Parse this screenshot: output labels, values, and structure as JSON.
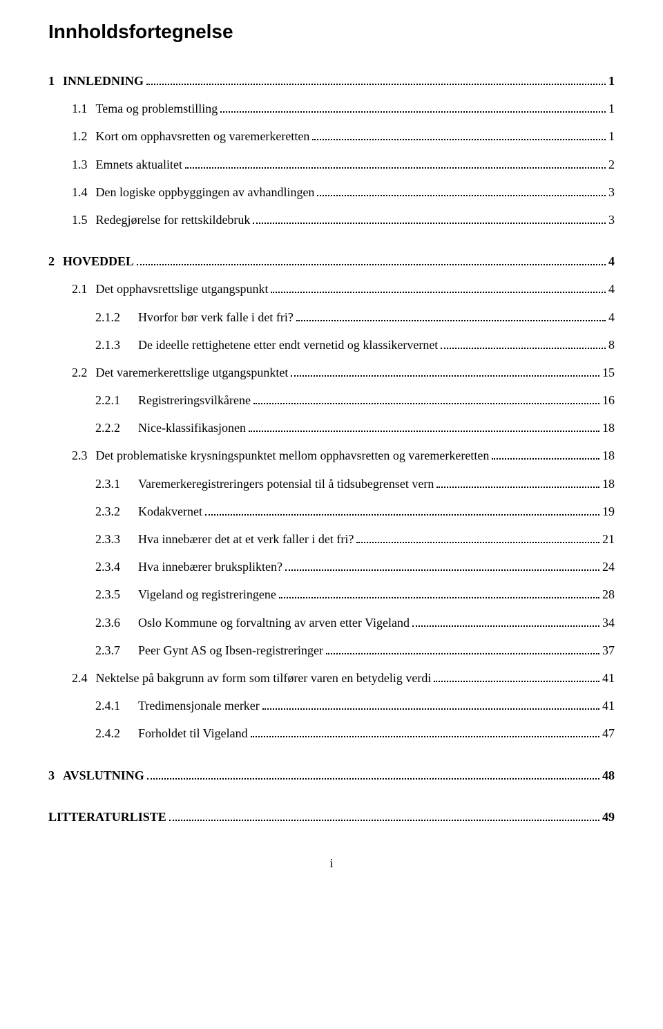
{
  "title": "Innholdsfortegnelse",
  "page_number_bottom": "i",
  "toc": [
    {
      "indent": 0,
      "num": "1",
      "label": "INNLEDNING",
      "page": "1",
      "bold": true
    },
    {
      "indent": 1,
      "num": "1.1",
      "label": "Tema og problemstilling",
      "page": "1",
      "bold": false
    },
    {
      "indent": 1,
      "num": "1.2",
      "label": "Kort om opphavsretten og varemerkeretten",
      "page": "1",
      "bold": false
    },
    {
      "indent": 1,
      "num": "1.3",
      "label": "Emnets aktualitet",
      "page": "2",
      "bold": false
    },
    {
      "indent": 1,
      "num": "1.4",
      "label": "Den logiske oppbyggingen av avhandlingen",
      "page": "3",
      "bold": false
    },
    {
      "indent": 1,
      "num": "1.5",
      "label": "Redegjørelse for rettskildebruk",
      "page": "3",
      "bold": false
    },
    {
      "gap": true
    },
    {
      "indent": 0,
      "num": "2",
      "label": "HOVEDDEL",
      "page": "4",
      "bold": true
    },
    {
      "indent": 1,
      "num": "2.1",
      "label": "Det opphavsrettslige utgangspunkt",
      "page": "4",
      "bold": false
    },
    {
      "indent": 2,
      "num": "2.1.2",
      "label": "Hvorfor bør verk falle i det fri?",
      "page": "4",
      "bold": false
    },
    {
      "indent": 2,
      "num": "2.1.3",
      "label": "De ideelle rettighetene etter endt vernetid og klassikervernet",
      "page": "8",
      "bold": false
    },
    {
      "indent": 1,
      "num": "2.2",
      "label": "Det varemerkerettslige utgangspunktet",
      "page": "15",
      "bold": false
    },
    {
      "indent": 2,
      "num": "2.2.1",
      "label": "Registreringsvilkårene",
      "page": "16",
      "bold": false
    },
    {
      "indent": 2,
      "num": "2.2.2",
      "label": "Nice-klassifikasjonen",
      "page": "18",
      "bold": false
    },
    {
      "indent": 1,
      "num": "2.3",
      "label": "Det problematiske krysningspunktet mellom opphavsretten og varemerkeretten",
      "page": "18",
      "bold": false
    },
    {
      "indent": 2,
      "num": "2.3.1",
      "label": "Varemerkeregistreringers potensial til å tidsubegrenset vern",
      "page": "18",
      "bold": false
    },
    {
      "indent": 2,
      "num": "2.3.2",
      "label": "Kodakvernet",
      "page": "19",
      "bold": false
    },
    {
      "indent": 2,
      "num": "2.3.3",
      "label": "Hva innebærer det at et verk faller i det fri?",
      "page": "21",
      "bold": false
    },
    {
      "indent": 2,
      "num": "2.3.4",
      "label": "Hva innebærer bruksplikten?",
      "page": "24",
      "bold": false
    },
    {
      "indent": 2,
      "num": "2.3.5",
      "label": "Vigeland og registreringene",
      "page": "28",
      "bold": false
    },
    {
      "indent": 2,
      "num": "2.3.6",
      "label": "Oslo Kommune og forvaltning av arven etter Vigeland",
      "page": "34",
      "bold": false
    },
    {
      "indent": 2,
      "num": "2.3.7",
      "label": "Peer Gynt AS og Ibsen-registreringer",
      "page": "37",
      "bold": false
    },
    {
      "indent": 1,
      "num": "2.4",
      "label": "Nektelse på bakgrunn av form som tilfører varen en betydelig verdi",
      "page": "41",
      "bold": false
    },
    {
      "indent": 2,
      "num": "2.4.1",
      "label": "Tredimensjonale merker",
      "page": "41",
      "bold": false
    },
    {
      "indent": 2,
      "num": "2.4.2",
      "label": "Forholdet til Vigeland",
      "page": "47",
      "bold": false
    },
    {
      "gap": true
    },
    {
      "indent": 0,
      "num": "3",
      "label": "AVSLUTNING",
      "page": "48",
      "bold": true
    },
    {
      "gap": true
    },
    {
      "indent": 0,
      "num": "",
      "label": "LITTERATURLISTE",
      "page": "49",
      "bold": true
    }
  ]
}
